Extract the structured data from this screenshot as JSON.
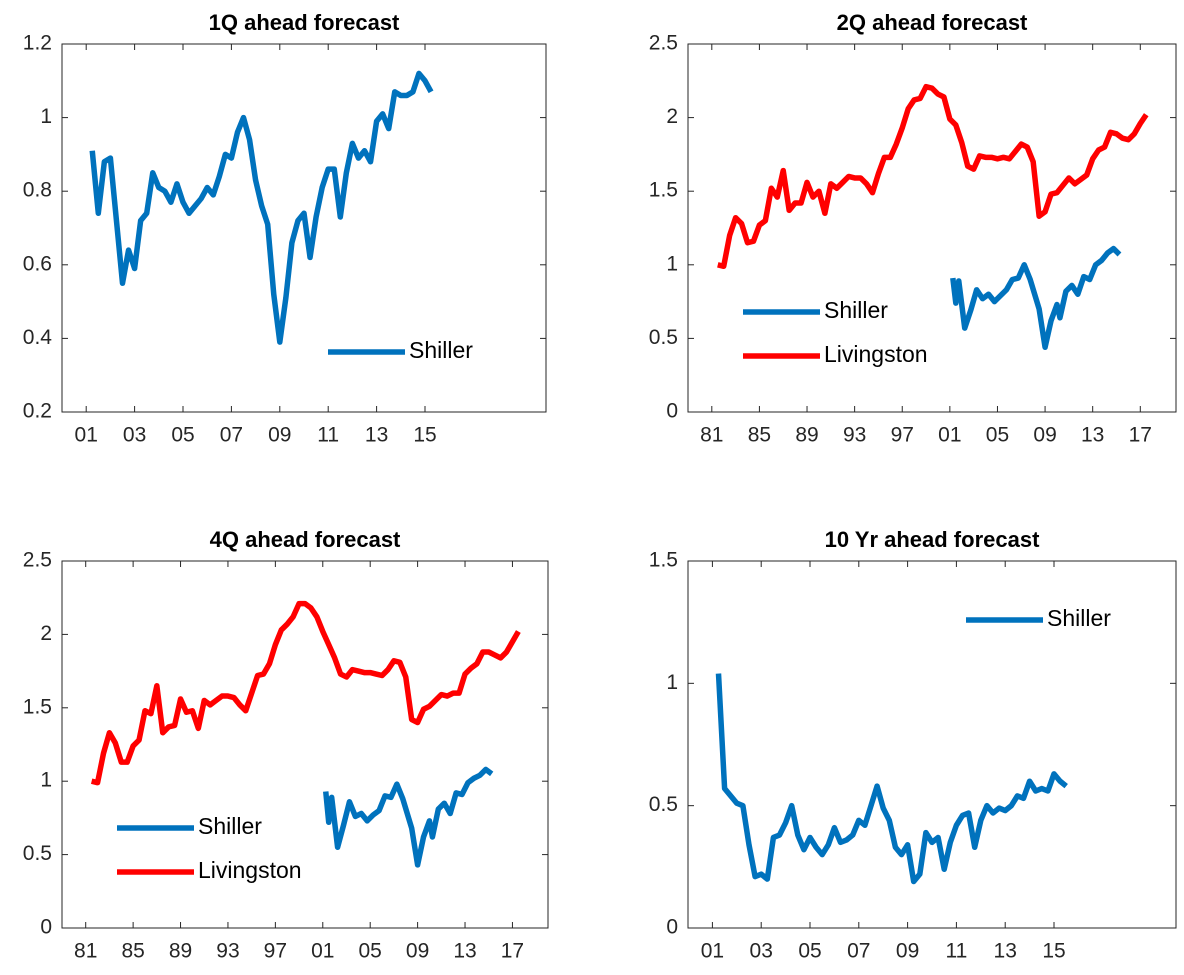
{
  "chart_data": [
    {
      "type": "line",
      "title": "1Q ahead forecast",
      "xlim": [
        2000,
        2020
      ],
      "ylim": [
        0.2,
        1.2
      ],
      "xticks": [
        {
          "value": 2001,
          "label": "01"
        },
        {
          "value": 2003,
          "label": "03"
        },
        {
          "value": 2005,
          "label": "05"
        },
        {
          "value": 2007,
          "label": "07"
        },
        {
          "value": 2009,
          "label": "09"
        },
        {
          "value": 2011,
          "label": "11"
        },
        {
          "value": 2013,
          "label": "13"
        },
        {
          "value": 2015,
          "label": "15"
        }
      ],
      "yticks": [
        0.2,
        0.4,
        0.6,
        0.8,
        1,
        1.2
      ],
      "legend": "lower right",
      "series": [
        {
          "name": "Shiller",
          "color": "#0072BD",
          "x": [
            2001.25,
            2001.5,
            2001.75,
            2002,
            2002.25,
            2002.5,
            2002.75,
            2003,
            2003.25,
            2003.5,
            2003.75,
            2004,
            2004.25,
            2004.5,
            2004.75,
            2005,
            2005.25,
            2005.5,
            2005.75,
            2006,
            2006.25,
            2006.5,
            2006.75,
            2007,
            2007.25,
            2007.5,
            2007.75,
            2008,
            2008.25,
            2008.5,
            2008.75,
            2009,
            2009.25,
            2009.5,
            2009.75,
            2010,
            2010.25,
            2010.5,
            2010.75,
            2011,
            2011.25,
            2011.5,
            2011.75,
            2012,
            2012.25,
            2012.5,
            2012.75,
            2013,
            2013.25,
            2013.5,
            2013.75,
            2014,
            2014.25,
            2014.5,
            2014.75,
            2015,
            2015.25
          ],
          "values": [
            0.91,
            0.74,
            0.88,
            0.89,
            0.72,
            0.55,
            0.64,
            0.59,
            0.72,
            0.74,
            0.85,
            0.81,
            0.8,
            0.77,
            0.82,
            0.77,
            0.74,
            0.76,
            0.78,
            0.81,
            0.79,
            0.84,
            0.9,
            0.89,
            0.96,
            1.0,
            0.94,
            0.83,
            0.76,
            0.71,
            0.52,
            0.39,
            0.51,
            0.66,
            0.72,
            0.74,
            0.62,
            0.73,
            0.81,
            0.86,
            0.86,
            0.73,
            0.85,
            0.93,
            0.89,
            0.91,
            0.88,
            0.99,
            1.01,
            0.97,
            1.07,
            1.06,
            1.06,
            1.07,
            1.12,
            1.1,
            1.07
          ]
        }
      ]
    },
    {
      "type": "line",
      "title": "2Q ahead forecast",
      "xlim": [
        1979,
        2020
      ],
      "ylim": [
        0,
        2.5
      ],
      "xticks": [
        {
          "value": 1981,
          "label": "81"
        },
        {
          "value": 1985,
          "label": "85"
        },
        {
          "value": 1989,
          "label": "89"
        },
        {
          "value": 1993,
          "label": "93"
        },
        {
          "value": 1997,
          "label": "97"
        },
        {
          "value": 2001,
          "label": "01"
        },
        {
          "value": 2005,
          "label": "05"
        },
        {
          "value": 2009,
          "label": "09"
        },
        {
          "value": 2013,
          "label": "13"
        },
        {
          "value": 2017,
          "label": "17"
        }
      ],
      "yticks": [
        0,
        0.5,
        1,
        1.5,
        2,
        2.5
      ],
      "legend": "lower left",
      "series": [
        {
          "name": "Shiller",
          "color": "#0072BD",
          "x": [
            2001.25,
            2001.5,
            2001.75,
            2002.25,
            2002.75,
            2003.25,
            2003.75,
            2004.25,
            2004.75,
            2005.25,
            2005.75,
            2006.25,
            2006.75,
            2007.25,
            2007.75,
            2008.5,
            2009,
            2009.5,
            2010,
            2010.25,
            2010.75,
            2011.25,
            2011.75,
            2012.25,
            2012.75,
            2013.25,
            2013.75,
            2014.25,
            2014.75,
            2015.25
          ],
          "values": [
            0.91,
            0.74,
            0.89,
            0.57,
            0.69,
            0.83,
            0.77,
            0.8,
            0.75,
            0.79,
            0.83,
            0.9,
            0.91,
            1.0,
            0.9,
            0.7,
            0.44,
            0.62,
            0.73,
            0.64,
            0.82,
            0.86,
            0.8,
            0.92,
            0.9,
            1.0,
            1.03,
            1.08,
            1.11,
            1.07
          ]
        },
        {
          "name": "Livingston",
          "color": "#FF0000",
          "x": [
            1981.5,
            1982,
            1982.5,
            1983,
            1983.5,
            1984,
            1984.5,
            1985,
            1985.5,
            1986,
            1986.5,
            1987,
            1987.5,
            1988,
            1988.5,
            1989,
            1989.5,
            1990,
            1990.5,
            1991,
            1991.5,
            1992,
            1992.5,
            1993,
            1993.5,
            1994,
            1994.5,
            1995,
            1995.5,
            1996,
            1996.5,
            1997,
            1997.5,
            1998,
            1998.5,
            1999,
            1999.5,
            2000,
            2000.5,
            2001,
            2001.5,
            2002,
            2002.5,
            2003,
            2003.5,
            2004,
            2004.5,
            2005,
            2005.5,
            2006,
            2006.5,
            2007,
            2007.5,
            2008,
            2008.5,
            2009,
            2009.5,
            2010,
            2010.5,
            2011,
            2011.5,
            2012,
            2012.5,
            2013,
            2013.5,
            2014,
            2014.5,
            2015,
            2015.5,
            2016,
            2016.5,
            2017,
            2017.5
          ],
          "values": [
            1.0,
            0.99,
            1.2,
            1.32,
            1.28,
            1.15,
            1.16,
            1.27,
            1.3,
            1.52,
            1.46,
            1.64,
            1.37,
            1.42,
            1.42,
            1.56,
            1.46,
            1.5,
            1.35,
            1.55,
            1.52,
            1.56,
            1.6,
            1.59,
            1.59,
            1.55,
            1.49,
            1.62,
            1.73,
            1.73,
            1.82,
            1.93,
            2.06,
            2.12,
            2.13,
            2.21,
            2.2,
            2.16,
            2.14,
            1.99,
            1.95,
            1.83,
            1.67,
            1.65,
            1.74,
            1.73,
            1.73,
            1.72,
            1.73,
            1.72,
            1.77,
            1.82,
            1.8,
            1.7,
            1.33,
            1.36,
            1.48,
            1.49,
            1.54,
            1.59,
            1.55,
            1.58,
            1.61,
            1.72,
            1.78,
            1.8,
            1.9,
            1.89,
            1.86,
            1.85,
            1.89,
            1.96,
            2.02
          ]
        }
      ]
    },
    {
      "type": "line",
      "title": "4Q ahead forecast",
      "xlim": [
        1979,
        2020
      ],
      "ylim": [
        0,
        2.5
      ],
      "xticks": [
        {
          "value": 1981,
          "label": "81"
        },
        {
          "value": 1985,
          "label": "85"
        },
        {
          "value": 1989,
          "label": "89"
        },
        {
          "value": 1993,
          "label": "93"
        },
        {
          "value": 1997,
          "label": "97"
        },
        {
          "value": 2001,
          "label": "01"
        },
        {
          "value": 2005,
          "label": "05"
        },
        {
          "value": 2009,
          "label": "09"
        },
        {
          "value": 2013,
          "label": "13"
        },
        {
          "value": 2017,
          "label": "17"
        }
      ],
      "yticks": [
        0,
        0.5,
        1,
        1.5,
        2,
        2.5
      ],
      "legend": "lower left",
      "series": [
        {
          "name": "Shiller",
          "color": "#0072BD",
          "x": [
            2001.25,
            2001.5,
            2001.75,
            2002.25,
            2002.75,
            2003.25,
            2003.75,
            2004.25,
            2004.75,
            2005.25,
            2005.75,
            2006.25,
            2006.75,
            2007.25,
            2007.75,
            2008.5,
            2009,
            2009.5,
            2010,
            2010.25,
            2010.75,
            2011.25,
            2011.75,
            2012.25,
            2012.75,
            2013.25,
            2013.75,
            2014.25,
            2014.75,
            2015.25
          ],
          "values": [
            0.93,
            0.72,
            0.89,
            0.55,
            0.7,
            0.86,
            0.76,
            0.78,
            0.73,
            0.77,
            0.8,
            0.9,
            0.89,
            0.98,
            0.88,
            0.68,
            0.43,
            0.62,
            0.73,
            0.62,
            0.81,
            0.85,
            0.78,
            0.92,
            0.91,
            0.99,
            1.02,
            1.04,
            1.08,
            1.05
          ]
        },
        {
          "name": "Livingston",
          "color": "#FF0000",
          "x": [
            1981.5,
            1982,
            1982.5,
            1983,
            1983.5,
            1984,
            1984.5,
            1985,
            1985.5,
            1986,
            1986.5,
            1987,
            1987.5,
            1988,
            1988.5,
            1989,
            1989.5,
            1990,
            1990.5,
            1991,
            1991.5,
            1992,
            1992.5,
            1993,
            1993.5,
            1994,
            1994.5,
            1995,
            1995.5,
            1996,
            1996.5,
            1997,
            1997.5,
            1998,
            1998.5,
            1999,
            1999.5,
            2000,
            2000.5,
            2001,
            2001.5,
            2002,
            2002.5,
            2003,
            2003.5,
            2004,
            2004.5,
            2005,
            2005.5,
            2006,
            2006.5,
            2007,
            2007.5,
            2008,
            2008.5,
            2009,
            2009.5,
            2010,
            2010.5,
            2011,
            2011.5,
            2012,
            2012.5,
            2013,
            2013.5,
            2014,
            2014.5,
            2015,
            2015.5,
            2016,
            2016.5,
            2017,
            2017.5
          ],
          "values": [
            1.0,
            0.99,
            1.19,
            1.33,
            1.26,
            1.13,
            1.13,
            1.24,
            1.28,
            1.48,
            1.46,
            1.65,
            1.33,
            1.37,
            1.38,
            1.56,
            1.47,
            1.48,
            1.36,
            1.55,
            1.52,
            1.55,
            1.58,
            1.58,
            1.57,
            1.52,
            1.48,
            1.6,
            1.72,
            1.73,
            1.8,
            1.93,
            2.03,
            2.07,
            2.12,
            2.21,
            2.21,
            2.18,
            2.12,
            2.02,
            1.93,
            1.84,
            1.73,
            1.71,
            1.76,
            1.75,
            1.74,
            1.74,
            1.73,
            1.72,
            1.76,
            1.82,
            1.81,
            1.71,
            1.42,
            1.4,
            1.49,
            1.51,
            1.55,
            1.59,
            1.58,
            1.6,
            1.6,
            1.73,
            1.77,
            1.8,
            1.88,
            1.88,
            1.86,
            1.84,
            1.88,
            1.95,
            2.02
          ]
        }
      ]
    },
    {
      "type": "line",
      "title": "10 Yr ahead forecast",
      "xlim": [
        2000,
        2020
      ],
      "ylim": [
        0,
        1.5
      ],
      "xticks": [
        {
          "value": 2001,
          "label": "01"
        },
        {
          "value": 2003,
          "label": "03"
        },
        {
          "value": 2005,
          "label": "05"
        },
        {
          "value": 2007,
          "label": "07"
        },
        {
          "value": 2009,
          "label": "09"
        },
        {
          "value": 2011,
          "label": "11"
        },
        {
          "value": 2013,
          "label": "13"
        },
        {
          "value": 2015,
          "label": "15"
        }
      ],
      "yticks": [
        0,
        0.5,
        1,
        1.5
      ],
      "legend": "upper right",
      "series": [
        {
          "name": "Shiller",
          "color": "#0072BD",
          "x": [
            2001.25,
            2001.5,
            2001.75,
            2002,
            2002.25,
            2002.5,
            2002.75,
            2003,
            2003.25,
            2003.5,
            2003.75,
            2004,
            2004.25,
            2004.5,
            2004.75,
            2005,
            2005.25,
            2005.5,
            2005.75,
            2006,
            2006.25,
            2006.5,
            2006.75,
            2007,
            2007.25,
            2007.5,
            2007.75,
            2008,
            2008.25,
            2008.5,
            2008.75,
            2009,
            2009.25,
            2009.5,
            2009.75,
            2010,
            2010.25,
            2010.5,
            2010.75,
            2011,
            2011.25,
            2011.5,
            2011.75,
            2012,
            2012.25,
            2012.5,
            2012.75,
            2013,
            2013.25,
            2013.5,
            2013.75,
            2014,
            2014.25,
            2014.5,
            2014.75,
            2015,
            2015.25,
            2015.5
          ],
          "values": [
            1.04,
            0.57,
            0.54,
            0.51,
            0.5,
            0.34,
            0.21,
            0.22,
            0.2,
            0.37,
            0.38,
            0.43,
            0.5,
            0.38,
            0.32,
            0.37,
            0.33,
            0.3,
            0.34,
            0.41,
            0.35,
            0.36,
            0.38,
            0.44,
            0.42,
            0.5,
            0.58,
            0.49,
            0.44,
            0.33,
            0.3,
            0.34,
            0.19,
            0.22,
            0.39,
            0.35,
            0.37,
            0.24,
            0.35,
            0.42,
            0.46,
            0.47,
            0.33,
            0.44,
            0.5,
            0.47,
            0.49,
            0.48,
            0.5,
            0.54,
            0.53,
            0.6,
            0.56,
            0.57,
            0.56,
            0.63,
            0.6,
            0.58
          ]
        }
      ]
    }
  ]
}
